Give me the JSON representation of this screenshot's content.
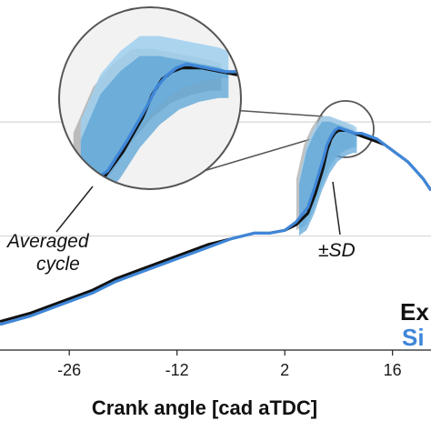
{
  "chart_data": {
    "type": "line",
    "xlabel": "Crank angle [cad aTDC]",
    "ylabel": "",
    "xlim": [
      -35,
      21
    ],
    "ylim": [
      0,
      1.1
    ],
    "x_ticks": [
      -26,
      -12,
      2,
      16
    ],
    "x_tick_labels": [
      "-26",
      "-12",
      "2",
      "16"
    ],
    "grid": "horizontal",
    "series": [
      {
        "name": "Ex",
        "color": "#111111",
        "x": [
          -35,
          -31,
          -27,
          -23,
          -20,
          -17,
          -14,
          -11,
          -8,
          -5,
          -2,
          0,
          2,
          3.5,
          5,
          6,
          7,
          7.5,
          8,
          8.5,
          9,
          10,
          11,
          12,
          13,
          14,
          15,
          16,
          17,
          18,
          19,
          20,
          21
        ],
        "y": [
          0.1,
          0.13,
          0.17,
          0.21,
          0.25,
          0.28,
          0.31,
          0.34,
          0.37,
          0.39,
          0.41,
          0.41,
          0.42,
          0.44,
          0.48,
          0.55,
          0.64,
          0.7,
          0.74,
          0.76,
          0.77,
          0.77,
          0.76,
          0.75,
          0.74,
          0.73,
          0.72,
          0.7,
          0.68,
          0.66,
          0.63,
          0.6,
          0.56
        ]
      },
      {
        "name": "Si",
        "color": "#3f86d8",
        "x": [
          -35,
          -31,
          -27,
          -23,
          -20,
          -17,
          -14,
          -11,
          -8,
          -5,
          -2,
          0,
          2,
          3.5,
          5,
          6,
          7,
          7.5,
          8,
          8.5,
          9,
          10,
          11,
          12,
          13,
          14,
          15,
          16,
          17,
          18,
          19,
          20,
          21
        ],
        "y": [
          0.09,
          0.12,
          0.16,
          0.2,
          0.24,
          0.27,
          0.3,
          0.33,
          0.36,
          0.39,
          0.41,
          0.41,
          0.42,
          0.45,
          0.5,
          0.58,
          0.67,
          0.72,
          0.75,
          0.77,
          0.78,
          0.77,
          0.76,
          0.76,
          0.75,
          0.74,
          0.72,
          0.7,
          0.68,
          0.66,
          0.63,
          0.6,
          0.56
        ]
      }
    ],
    "band_sd": {
      "x": [
        3.5,
        4.5,
        5.5,
        6.5,
        7.5,
        8.5,
        9.5,
        10.5,
        11
      ],
      "upper": [
        0.6,
        0.72,
        0.78,
        0.82,
        0.82,
        0.81,
        0.8,
        0.79,
        0.78
      ],
      "lower": [
        0.42,
        0.44,
        0.5,
        0.58,
        0.64,
        0.68,
        0.7,
        0.71,
        0.71
      ]
    },
    "annotations": [
      "Averaged cycle",
      "±SD"
    ],
    "legend_position": "bottom-right"
  },
  "annotations": {
    "averaged_line1": "Averaged",
    "averaged_line2": "cycle",
    "sd": "±SD"
  },
  "legend": {
    "experiment": "Ex",
    "simulation": "Si"
  },
  "colors": {
    "experiment": "#111111",
    "simulation": "#3f86d8",
    "band_light": "#9fcfee",
    "band_mid": "#5aa3d6",
    "band_gray": "#a8a8a8"
  }
}
